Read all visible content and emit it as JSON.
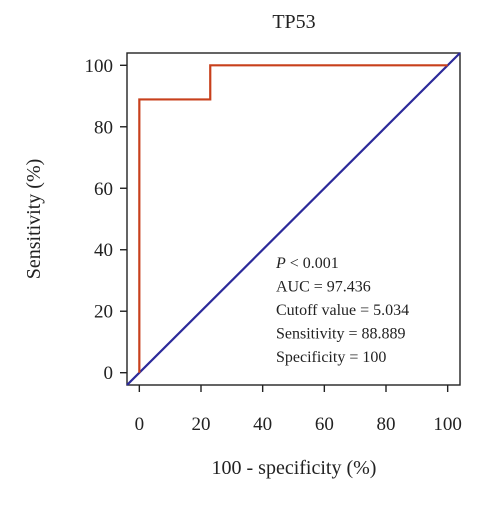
{
  "chart_data": {
    "type": "line",
    "title": "TP53",
    "xlabel": "100 - specificity (%)",
    "ylabel": "Sensitivity (%)",
    "xlim": [
      -4,
      104
    ],
    "ylim": [
      -4,
      104
    ],
    "xticks": [
      0,
      20,
      40,
      60,
      80,
      100
    ],
    "yticks": [
      0,
      20,
      40,
      60,
      80,
      100
    ],
    "grid": false,
    "series": [
      {
        "role": "roc-curve",
        "color": "#c8401c",
        "x": [
          0,
          0,
          23,
          23,
          100
        ],
        "y": [
          0,
          88.889,
          88.889,
          100,
          100
        ]
      },
      {
        "role": "reference-line",
        "color": "#2c2a9a",
        "x": [
          -4,
          104
        ],
        "y": [
          -4,
          104
        ]
      }
    ],
    "annotations": [
      {
        "prefix": "P",
        "text": " < 0.001"
      },
      {
        "text": "AUC = 97.436"
      },
      {
        "text": "Cutoff value = 5.034"
      },
      {
        "text": "Sensitivity = 88.889"
      },
      {
        "text": "Specificity = 100"
      }
    ]
  }
}
